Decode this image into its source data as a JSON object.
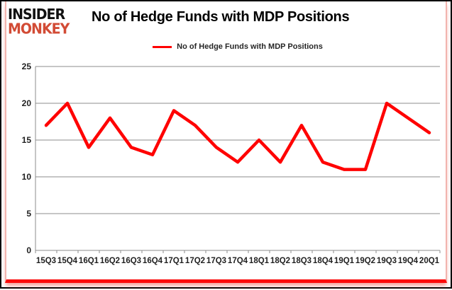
{
  "header": {
    "logo": {
      "line1": "INSIDER",
      "line2": "MONKEY",
      "line1_color": "#111111",
      "line2_color": "#d24b35"
    },
    "title": "No of Hedge Funds with MDP Positions"
  },
  "legend": {
    "label": "No of Hedge Funds with MDP Positions"
  },
  "chart_data": {
    "type": "line",
    "title": "No of Hedge Funds with MDP Positions",
    "categories": [
      "15Q3",
      "15Q4",
      "16Q1",
      "16Q2",
      "16Q3",
      "16Q4",
      "17Q1",
      "17Q2",
      "17Q3",
      "17Q4",
      "18Q1",
      "18Q2",
      "18Q3",
      "18Q4",
      "19Q1",
      "19Q2",
      "19Q3",
      "19Q4",
      "20Q1"
    ],
    "series": [
      {
        "name": "No of Hedge Funds with MDP Positions",
        "color": "#ff0000",
        "values": [
          17,
          20,
          14,
          18,
          14,
          13,
          19,
          17,
          14,
          12,
          15,
          12,
          17,
          12,
          11,
          11,
          20,
          18,
          16
        ]
      }
    ],
    "xlabel": "",
    "ylabel": "",
    "ylim": [
      0,
      25
    ],
    "yticks": [
      0,
      5,
      10,
      15,
      20,
      25
    ],
    "grid": true,
    "legend_position": "top-center",
    "gridline_color": "#8e8e8e",
    "tick_label_color": "#1f1f1f"
  },
  "frame": {
    "side_border_color": "#f2b4ae",
    "bottom_bar_color": "#fb0a0a"
  }
}
